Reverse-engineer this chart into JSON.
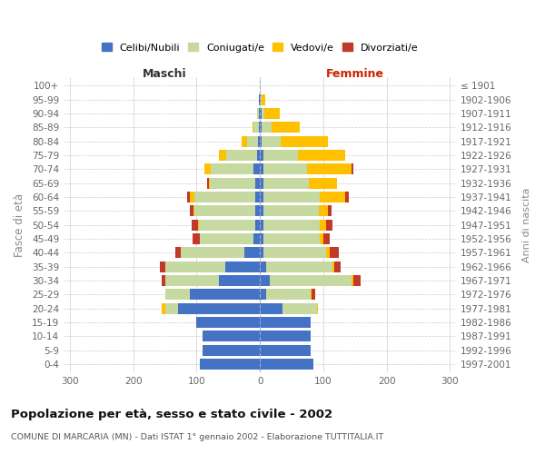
{
  "age_groups": [
    "0-4",
    "5-9",
    "10-14",
    "15-19",
    "20-24",
    "25-29",
    "30-34",
    "35-39",
    "40-44",
    "45-49",
    "50-54",
    "55-59",
    "60-64",
    "65-69",
    "70-74",
    "75-79",
    "80-84",
    "85-89",
    "90-94",
    "95-99",
    "100+"
  ],
  "birth_years": [
    "1997-2001",
    "1992-1996",
    "1987-1991",
    "1982-1986",
    "1977-1981",
    "1972-1976",
    "1967-1971",
    "1962-1966",
    "1957-1961",
    "1952-1956",
    "1947-1951",
    "1942-1946",
    "1937-1941",
    "1932-1936",
    "1927-1931",
    "1922-1926",
    "1917-1921",
    "1912-1916",
    "1907-1911",
    "1902-1906",
    "≤ 1901"
  ],
  "males_celibi": [
    95,
    90,
    90,
    100,
    130,
    110,
    65,
    55,
    25,
    10,
    8,
    8,
    8,
    7,
    10,
    5,
    3,
    2,
    1,
    1,
    0
  ],
  "males_coniugati": [
    0,
    0,
    0,
    0,
    20,
    40,
    85,
    95,
    100,
    85,
    88,
    95,
    95,
    72,
    68,
    48,
    18,
    8,
    3,
    1,
    0
  ],
  "males_vedovi": [
    0,
    0,
    0,
    0,
    5,
    0,
    0,
    0,
    0,
    0,
    2,
    2,
    7,
    2,
    10,
    12,
    8,
    2,
    0,
    0,
    0
  ],
  "males_divorziati": [
    0,
    0,
    0,
    0,
    0,
    0,
    5,
    8,
    8,
    12,
    10,
    5,
    5,
    2,
    0,
    0,
    0,
    0,
    0,
    0,
    0
  ],
  "females_nubili": [
    85,
    80,
    80,
    80,
    35,
    10,
    15,
    10,
    5,
    5,
    5,
    5,
    5,
    5,
    5,
    5,
    3,
    3,
    2,
    1,
    0
  ],
  "females_coniugate": [
    0,
    0,
    0,
    0,
    55,
    70,
    130,
    105,
    100,
    90,
    90,
    88,
    90,
    72,
    70,
    55,
    30,
    15,
    5,
    2,
    0
  ],
  "females_vedove": [
    0,
    0,
    0,
    0,
    2,
    2,
    2,
    2,
    5,
    5,
    10,
    15,
    40,
    45,
    70,
    75,
    75,
    45,
    25,
    5,
    0
  ],
  "females_divorziate": [
    0,
    0,
    0,
    0,
    0,
    5,
    12,
    10,
    15,
    10,
    10,
    5,
    5,
    0,
    2,
    0,
    0,
    0,
    0,
    0,
    0
  ],
  "colors_celibi": "#4472c4",
  "colors_coniugati": "#c5d9a0",
  "colors_vedovi": "#ffc000",
  "colors_divorziati": "#c0392b",
  "title": "Popolazione per età, sesso e stato civile - 2002",
  "subtitle": "COMUNE DI MARCARIA (MN) - Dati ISTAT 1° gennaio 2002 - Elaborazione TUTTITALIA.IT",
  "ylabel_left": "Fasce di età",
  "ylabel_right": "Anni di nascita",
  "label_maschi": "Maschi",
  "label_femmine": "Femmine",
  "legend_labels": [
    "Celibi/Nubili",
    "Coniugati/e",
    "Vedovi/e",
    "Divorziati/e"
  ],
  "xlim": 310,
  "background_color": "#ffffff",
  "grid_color": "#cccccc"
}
